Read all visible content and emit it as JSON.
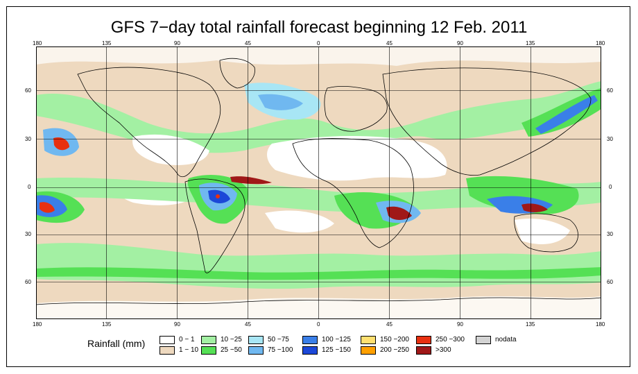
{
  "title": "GFS 7−day total rainfall forecast beginning 12 Feb. 2011",
  "axes": {
    "lon_ticks": [
      "180",
      "135",
      "90",
      "45",
      "0",
      "45",
      "90",
      "135",
      "180"
    ],
    "lat_ticks": [
      "60",
      "30",
      "0",
      "30",
      "60"
    ]
  },
  "legend": {
    "title": "Rainfall (mm)",
    "items": [
      {
        "label": "0 − 1",
        "color": "#ffffff"
      },
      {
        "label": "1 − 10",
        "color": "#eed9bf"
      },
      {
        "label": "10 −25",
        "color": "#a3f0a3"
      },
      {
        "label": "25 −50",
        "color": "#55e055"
      },
      {
        "label": "50 −75",
        "color": "#a8e6f5"
      },
      {
        "label": "75 −100",
        "color": "#70b8f0"
      },
      {
        "label": "100 −125",
        "color": "#3a7fe8"
      },
      {
        "label": "125 −150",
        "color": "#1c48d8"
      },
      {
        "label": "150 −200",
        "color": "#ffe070"
      },
      {
        "label": "200 −250",
        "color": "#ffa000"
      },
      {
        "label": "250 −300",
        "color": "#e83010"
      },
      {
        "label": ">300",
        "color": "#a01818"
      },
      {
        "label": "nodata",
        "color": "#d3d3d3"
      }
    ]
  }
}
